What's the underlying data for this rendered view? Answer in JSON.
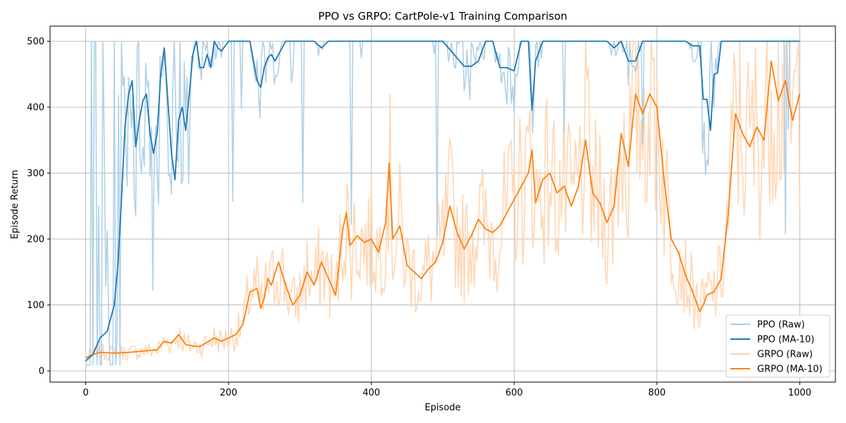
{
  "chart_data": {
    "type": "line",
    "title": "PPO vs GRPO: CartPole-v1 Training Comparison",
    "xlabel": "Episode",
    "ylabel": "Episode Return",
    "xlim": [
      -50,
      1050
    ],
    "ylim": [
      -17,
      523
    ],
    "xticks": [
      0,
      200,
      400,
      600,
      800,
      1000
    ],
    "yticks": [
      0,
      100,
      200,
      300,
      400,
      500
    ],
    "grid": true,
    "legend_position": "lower-right",
    "colors": {
      "ppo": "#1f77b4",
      "grpo": "#ff7f0e",
      "ppo_raw": "#a9cce3",
      "grpo_raw": "#ffd3ad"
    },
    "legend": [
      {
        "label": "PPO (Raw)",
        "series": "ppo_raw"
      },
      {
        "label": "PPO (MA-10)",
        "series": "ppo_ma"
      },
      {
        "label": "GRPO (Raw)",
        "series": "grpo_raw"
      },
      {
        "label": "GRPO (MA-10)",
        "series": "grpo_ma"
      }
    ],
    "series": [
      {
        "name": "PPO (MA-10)",
        "key": "ppo_ma",
        "x": [
          0,
          10,
          20,
          30,
          40,
          45,
          50,
          55,
          60,
          65,
          70,
          75,
          80,
          85,
          90,
          95,
          100,
          105,
          110,
          115,
          120,
          125,
          130,
          135,
          140,
          145,
          150,
          155,
          160,
          165,
          170,
          175,
          180,
          185,
          190,
          200,
          210,
          230,
          240,
          245,
          250,
          255,
          260,
          265,
          270,
          280,
          290,
          300,
          320,
          330,
          340,
          360,
          400,
          500,
          530,
          540,
          550,
          560,
          570,
          580,
          590,
          600,
          610,
          620,
          625,
          630,
          640,
          660,
          700,
          720,
          730,
          740,
          750,
          760,
          770,
          780,
          800,
          830,
          840,
          850,
          860,
          865,
          870,
          875,
          880,
          885,
          890,
          900,
          950,
          1000
        ],
        "y": [
          15,
          25,
          50,
          60,
          100,
          160,
          260,
          370,
          420,
          440,
          340,
          380,
          410,
          420,
          360,
          330,
          360,
          450,
          490,
          410,
          330,
          290,
          380,
          400,
          365,
          420,
          480,
          500,
          460,
          460,
          480,
          460,
          500,
          490,
          485,
          500,
          500,
          500,
          440,
          430,
          460,
          475,
          480,
          470,
          480,
          500,
          500,
          500,
          500,
          490,
          500,
          500,
          500,
          500,
          462,
          462,
          470,
          500,
          500,
          460,
          460,
          455,
          500,
          500,
          395,
          470,
          500,
          500,
          500,
          500,
          500,
          490,
          500,
          470,
          470,
          500,
          500,
          500,
          500,
          493,
          493,
          412,
          412,
          365,
          450,
          452,
          500,
          500,
          500,
          500
        ]
      },
      {
        "name": "GRPO (MA-10)",
        "key": "grpo_ma",
        "x": [
          0,
          10,
          20,
          40,
          60,
          80,
          100,
          110,
          120,
          130,
          140,
          150,
          160,
          180,
          190,
          200,
          210,
          220,
          230,
          240,
          245,
          250,
          255,
          260,
          270,
          280,
          290,
          300,
          310,
          320,
          330,
          340,
          350,
          360,
          365,
          370,
          380,
          390,
          400,
          410,
          420,
          425,
          430,
          440,
          450,
          460,
          470,
          480,
          490,
          500,
          510,
          520,
          530,
          540,
          550,
          560,
          570,
          580,
          590,
          600,
          610,
          620,
          625,
          630,
          640,
          650,
          660,
          670,
          680,
          690,
          700,
          710,
          720,
          730,
          740,
          750,
          760,
          770,
          780,
          790,
          800,
          810,
          820,
          830,
          840,
          850,
          860,
          865,
          870,
          880,
          890,
          900,
          910,
          920,
          930,
          940,
          950,
          960,
          970,
          980,
          990,
          1000
        ],
        "y": [
          20,
          25,
          28,
          27,
          28,
          30,
          32,
          45,
          42,
          55,
          40,
          38,
          37,
          50,
          45,
          50,
          55,
          70,
          120,
          125,
          95,
          110,
          140,
          130,
          165,
          130,
          100,
          115,
          150,
          130,
          165,
          140,
          115,
          215,
          240,
          190,
          205,
          195,
          200,
          180,
          225,
          315,
          200,
          220,
          160,
          150,
          140,
          155,
          165,
          195,
          250,
          210,
          185,
          205,
          230,
          215,
          210,
          220,
          240,
          260,
          280,
          300,
          335,
          255,
          290,
          300,
          270,
          280,
          250,
          280,
          350,
          270,
          255,
          225,
          250,
          360,
          310,
          420,
          390,
          420,
          400,
          290,
          200,
          180,
          145,
          120,
          90,
          100,
          115,
          120,
          140,
          240,
          390,
          360,
          340,
          370,
          350,
          470,
          410,
          440,
          380,
          420
        ]
      }
    ]
  }
}
